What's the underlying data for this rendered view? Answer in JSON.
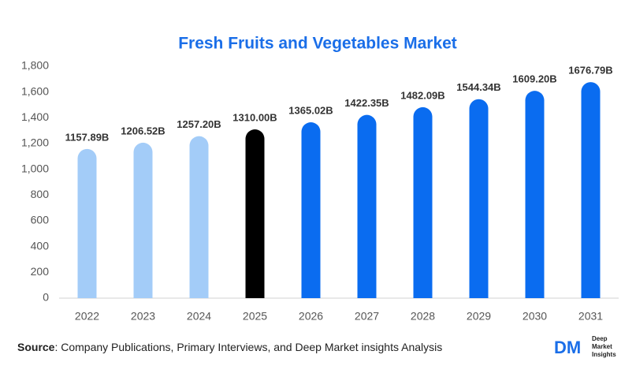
{
  "chart_data": {
    "type": "bar",
    "title": "Fresh Fruits and Vegetables Market",
    "categories": [
      "2022",
      "2023",
      "2024",
      "2025",
      "2026",
      "2027",
      "2028",
      "2029",
      "2030",
      "2031"
    ],
    "values": [
      1157.89,
      1206.52,
      1257.2,
      1310.0,
      1365.02,
      1422.35,
      1482.09,
      1544.34,
      1609.2,
      1676.79
    ],
    "value_labels": [
      "1157.89B",
      "1206.52B",
      "1257.20B",
      "1310.00B",
      "1365.02B",
      "1422.35B",
      "1482.09B",
      "1544.34B",
      "1609.20B",
      "1676.79B"
    ],
    "colors": [
      "#a3ccf8",
      "#a3ccf8",
      "#a3ccf8",
      "#000000",
      "#0a6cf0",
      "#0a6cf0",
      "#0a6cf0",
      "#0a6cf0",
      "#0a6cf0",
      "#0a6cf0"
    ],
    "ylim": [
      0,
      1800
    ],
    "yticks": [
      0,
      200,
      400,
      600,
      800,
      {
        "value": 1000,
        "label": "1,000"
      },
      {
        "value": 1200,
        "label": "1,200"
      },
      {
        "value": 1400,
        "label": "1,400"
      },
      {
        "value": 1600,
        "label": "1,600"
      },
      {
        "value": 1800,
        "label": "1,800"
      }
    ],
    "grid": false
  },
  "footer": {
    "source_label": "Source",
    "source_text": ": Company Publications, Primary Interviews, and Deep Market insights Analysis",
    "logo": {
      "mark": "DM",
      "line1": "Deep",
      "line2": "Market",
      "line3": "Insights"
    }
  }
}
